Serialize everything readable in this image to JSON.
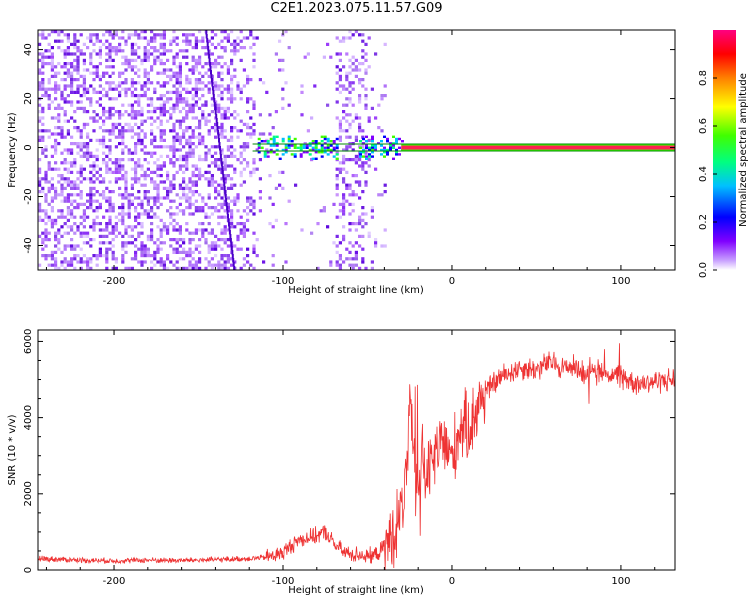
{
  "title": "C2E1.2023.075.11.57.G09",
  "colors": {
    "snr_line": "#ee3333",
    "centre_line": "#008800",
    "background_scatter": "#7a1cf0"
  },
  "chart_data": [
    {
      "type": "heatmap",
      "title": "C2E1.2023.075.11.57.G09",
      "xlabel": "Height of straight line (km)",
      "ylabel": "Frequency (Hz)",
      "xlim": [
        -245,
        132
      ],
      "ylim": [
        -50,
        48
      ],
      "xticks": [
        -200,
        -100,
        0,
        100
      ],
      "yticks": [
        -40,
        -20,
        0,
        20,
        40
      ],
      "colorbar": {
        "label": "Normalized spectral amplitude",
        "range": [
          0,
          1
        ],
        "ticks": [
          "0.0",
          "0.2",
          "0.4",
          "0.6",
          "0.8"
        ],
        "tick_values": [
          0,
          0.2,
          0.4,
          0.6,
          0.8
        ],
        "colormap": [
          "#ffffff",
          "#c8a0ff",
          "#8000ff",
          "#0000ff",
          "#00c0ff",
          "#00ff80",
          "#40ff00",
          "#ffff00",
          "#ff8000",
          "#ff0000",
          "#ff0080"
        ]
      },
      "signal_band": {
        "x_start": -118,
        "x_end": 132,
        "center_freq_hz": 0,
        "half_width_hz": 1.5
      },
      "bright_segments": [
        {
          "x_start": -115,
          "x_end": -68,
          "amplitude": 0.45
        },
        {
          "x_start": -55,
          "x_end": -30,
          "amplitude": 0.45
        },
        {
          "x_start": -30,
          "x_end": 132,
          "amplitude": 0.95
        }
      ],
      "notch": {
        "x_start": -100,
        "x_end": -70
      }
    },
    {
      "type": "line",
      "xlabel": "Height of straight line (km)",
      "ylabel": "SNR (10 * v/v)",
      "xlim": [
        -245,
        132
      ],
      "ylim": [
        0,
        6300
      ],
      "xticks": [
        -200,
        -100,
        0,
        100
      ],
      "yticks": [
        0,
        2000,
        4000,
        6000
      ],
      "x": [
        -245,
        -220,
        -200,
        -180,
        -160,
        -140,
        -120,
        -110,
        -100,
        -95,
        -90,
        -85,
        -80,
        -75,
        -70,
        -65,
        -60,
        -55,
        -50,
        -45,
        -40,
        -35,
        -30,
        -27,
        -25,
        -22,
        -20,
        -18,
        -15,
        -10,
        -5,
        0,
        5,
        10,
        15,
        20,
        25,
        30,
        35,
        40,
        45,
        50,
        55,
        60,
        65,
        70,
        75,
        80,
        83,
        85,
        90,
        95,
        100,
        105,
        110,
        120,
        132
      ],
      "y": [
        300,
        260,
        240,
        260,
        250,
        270,
        300,
        330,
        450,
        650,
        800,
        850,
        900,
        1000,
        700,
        500,
        400,
        420,
        350,
        400,
        600,
        900,
        1500,
        2500,
        4300,
        2800,
        2200,
        3000,
        2400,
        3000,
        3400,
        2900,
        3800,
        3700,
        4300,
        4700,
        4900,
        5100,
        5200,
        5300,
        5300,
        5250,
        5400,
        5450,
        5300,
        5350,
        5300,
        5100,
        5500,
        5200,
        5200,
        5100,
        5100,
        5000,
        4900,
        4950,
        5000
      ]
    }
  ]
}
